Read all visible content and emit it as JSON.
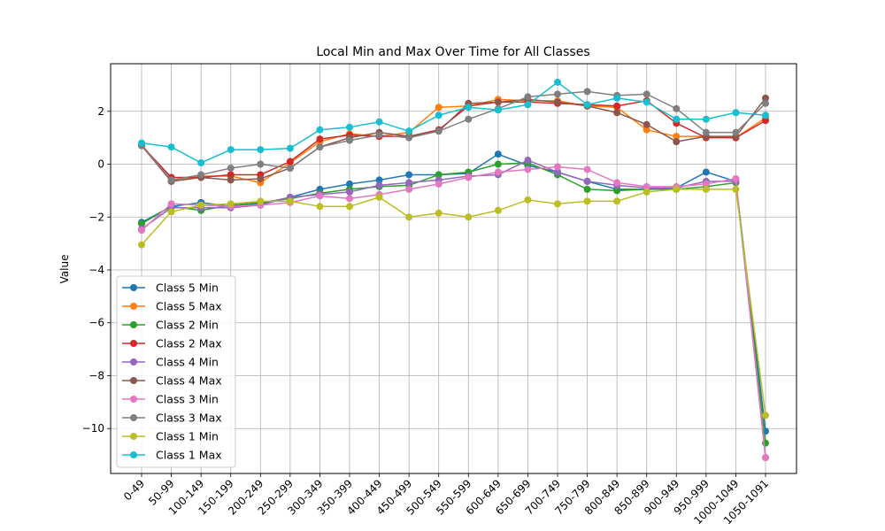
{
  "chart_data": {
    "type": "line",
    "title": "Local Min and Max Over Time for All Classes",
    "xlabel": "",
    "ylabel": "Value",
    "ylim": [
      -11.7,
      3.8
    ],
    "yticks": [
      2,
      0,
      -2,
      -4,
      -6,
      -8,
      -10
    ],
    "ytick_labels": [
      "2",
      "0",
      "−2",
      "−4",
      "−6",
      "−8",
      "−10"
    ],
    "grid": true,
    "legend_position": "lower-left",
    "categories": [
      "0-49",
      "50-99",
      "100-149",
      "150-199",
      "200-249",
      "250-299",
      "300-349",
      "350-399",
      "400-449",
      "450-499",
      "500-549",
      "550-599",
      "600-649",
      "650-699",
      "700-749",
      "750-799",
      "800-849",
      "850-899",
      "900-949",
      "950-999",
      "1000-1049",
      "1050-1091"
    ],
    "series": [
      {
        "name": "Class 5 Min",
        "color": "#1f77b4",
        "values": [
          -2.2,
          -1.6,
          -1.45,
          -1.6,
          -1.5,
          -1.25,
          -0.95,
          -0.75,
          -0.6,
          -0.4,
          -0.4,
          -0.35,
          0.38,
          -0.05,
          -0.3,
          -0.65,
          -0.95,
          -0.95,
          -0.9,
          -0.3,
          -0.65,
          -10.1
        ]
      },
      {
        "name": "Class 5 Max",
        "color": "#ff7f0e",
        "values": [
          0.75,
          -0.65,
          -0.45,
          -0.45,
          -0.7,
          0.05,
          0.85,
          1.15,
          1.05,
          1.2,
          2.15,
          2.2,
          2.45,
          2.4,
          2.4,
          2.2,
          2.15,
          1.3,
          1.05,
          1.05,
          1.0,
          1.75
        ]
      },
      {
        "name": "Class 2 Min",
        "color": "#2ca02c",
        "values": [
          -2.25,
          -1.6,
          -1.75,
          -1.55,
          -1.45,
          -1.3,
          -1.1,
          -0.95,
          -0.85,
          -0.8,
          -0.4,
          -0.3,
          0.0,
          0.05,
          -0.4,
          -0.95,
          -1.0,
          -0.95,
          -0.95,
          -0.85,
          -0.7,
          -10.55
        ]
      },
      {
        "name": "Class 2 Max",
        "color": "#d62728",
        "values": [
          0.7,
          -0.5,
          -0.5,
          -0.4,
          -0.4,
          0.1,
          0.95,
          1.1,
          1.05,
          1.05,
          1.3,
          2.2,
          2.35,
          2.35,
          2.3,
          2.25,
          2.2,
          2.4,
          1.55,
          1.0,
          1.0,
          1.65
        ]
      },
      {
        "name": "Class 4 Min",
        "color": "#9467bd",
        "values": [
          -2.45,
          -1.65,
          -1.65,
          -1.65,
          -1.55,
          -1.25,
          -1.15,
          -1.05,
          -0.8,
          -0.7,
          -0.6,
          -0.45,
          -0.4,
          0.15,
          -0.3,
          -0.65,
          -0.8,
          -0.9,
          -0.9,
          -0.65,
          -0.65,
          -11.1
        ]
      },
      {
        "name": "Class 4 Max",
        "color": "#8c564b",
        "values": [
          0.7,
          -0.65,
          -0.5,
          -0.6,
          -0.55,
          -0.15,
          0.65,
          1.0,
          1.2,
          1.05,
          1.25,
          2.3,
          2.35,
          2.45,
          2.35,
          2.2,
          1.95,
          1.5,
          0.85,
          1.05,
          1.05,
          2.5
        ]
      },
      {
        "name": "Class 3 Min",
        "color": "#e377c2",
        "values": [
          -2.5,
          -1.5,
          -1.55,
          -1.6,
          -1.55,
          -1.45,
          -1.2,
          -1.3,
          -1.15,
          -0.95,
          -0.75,
          -0.5,
          -0.3,
          -0.2,
          -0.1,
          -0.2,
          -0.7,
          -0.85,
          -0.85,
          -0.75,
          -0.55,
          -11.1
        ]
      },
      {
        "name": "Class 3 Max",
        "color": "#7f7f7f",
        "values": [
          0.7,
          -0.6,
          -0.4,
          -0.15,
          0.0,
          -0.15,
          0.65,
          0.9,
          1.1,
          1.0,
          1.25,
          1.7,
          2.1,
          2.55,
          2.65,
          2.75,
          2.6,
          2.65,
          2.1,
          1.2,
          1.2,
          2.3
        ]
      },
      {
        "name": "Class 1 Min",
        "color": "#bcbd22",
        "values": [
          -3.05,
          -1.8,
          -1.55,
          -1.5,
          -1.4,
          -1.4,
          -1.6,
          -1.6,
          -1.25,
          -2.0,
          -1.85,
          -2.0,
          -1.75,
          -1.35,
          -1.5,
          -1.4,
          -1.4,
          -1.05,
          -0.95,
          -0.95,
          -0.95,
          -9.5
        ]
      },
      {
        "name": "Class 1 Max",
        "color": "#17becf",
        "values": [
          0.8,
          0.65,
          0.05,
          0.55,
          0.55,
          0.6,
          1.3,
          1.4,
          1.6,
          1.25,
          1.85,
          2.15,
          2.05,
          2.25,
          3.1,
          2.25,
          2.5,
          2.35,
          1.7,
          1.7,
          1.95,
          1.85
        ]
      }
    ]
  }
}
